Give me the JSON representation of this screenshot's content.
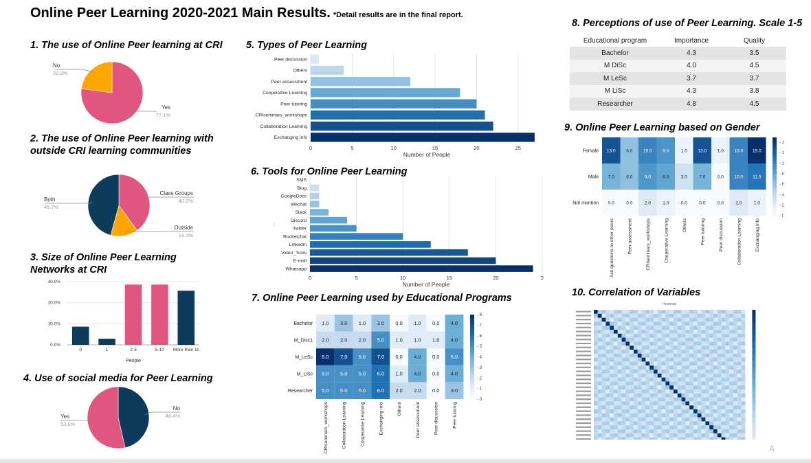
{
  "header": {
    "title": "Online Peer Learning 2020-2021 Main Results.",
    "note": "*Detail results are in the final report."
  },
  "corner_mark": "A",
  "chart_data": [
    {
      "id": "c1",
      "type": "pie",
      "title": "1. The use of Online Peer learning at CRI",
      "slices": [
        {
          "label": "Yes",
          "pct_label": "77.1%",
          "value": 77.1,
          "color": "#e0567f"
        },
        {
          "label": "No",
          "pct_label": "22.9%",
          "value": 22.9,
          "color": "#ffa500"
        }
      ]
    },
    {
      "id": "c2",
      "type": "pie",
      "title": "2.  The use of Online Peer learning with outside CRI learning communities",
      "title_lines": [
        "2.  The use of Online Peer learning with",
        "outside CRI learning communities"
      ],
      "slices": [
        {
          "label": "Class Groups",
          "pct_label": "40.0%",
          "value": 40.0,
          "color": "#e0567f"
        },
        {
          "label": "Outside",
          "pct_label": "14.3%",
          "value": 14.3,
          "color": "#ffa500"
        },
        {
          "label": "Both",
          "pct_label": "45.7%",
          "value": 45.7,
          "color": "#0d3b5c"
        }
      ]
    },
    {
      "id": "c3",
      "type": "bar",
      "title": "3.  Size of Online Peer Learning Networks at CRI",
      "title_lines": [
        "3.  Size of Online Peer Learning",
        "Networks at CRI"
      ],
      "categories": [
        "0",
        "1",
        "2-5",
        "5-10",
        "More than 11"
      ],
      "values": [
        8.6,
        2.9,
        28.6,
        28.6,
        25.7
      ],
      "colors": [
        "#0d3b5c",
        "#0d3b5c",
        "#e0567f",
        "#e0567f",
        "#0d3b5c"
      ],
      "xlabel": "People",
      "ylabel": "%",
      "ylim": [
        0,
        30
      ],
      "yticks": [
        "0.0%",
        "10.0%",
        "20.0%",
        "30.0%"
      ]
    },
    {
      "id": "c4",
      "type": "pie",
      "title": "4.  Use of social media for Peer Learning",
      "slices": [
        {
          "label": "No",
          "pct_label": "46.4%",
          "value": 46.4,
          "color": "#0d3b5c"
        },
        {
          "label": "Yes",
          "pct_label": "53.6%",
          "value": 53.6,
          "color": "#e0567f"
        }
      ]
    },
    {
      "id": "c5",
      "type": "bar",
      "orientation": "horizontal",
      "title": "5. Types of Peer Learning",
      "categories": [
        "Peer discussion",
        "Others",
        "Peer assessment",
        "Cooperative Learning",
        "Peer tutoring",
        "CRIseminars_workshops",
        "Collaboration Learning",
        "Exchanging info"
      ],
      "values": [
        1,
        4,
        12,
        18,
        20,
        21,
        22,
        27
      ],
      "xlabel": "Number of People",
      "xlim": [
        0,
        28
      ],
      "xticks": [
        "0",
        "5",
        "10",
        "15",
        "20",
        "25"
      ]
    },
    {
      "id": "c6",
      "type": "bar",
      "orientation": "horizontal",
      "title": "6. Tools for Online Peer Learning",
      "categories": [
        "SMS",
        "Blog",
        "GoogleDocs",
        "Wechat",
        "Slack",
        "Discord",
        "Twitter",
        "Rocketchat",
        "Linkedin",
        "Video_Tools",
        "E-mail",
        "Whatsapp"
      ],
      "values": [
        0,
        1,
        1,
        1,
        2,
        4,
        5,
        10,
        13,
        17,
        20,
        24
      ],
      "xlabel": "Number of People",
      "xlim": [
        0,
        25
      ],
      "xticks": [
        "0",
        "5",
        "10",
        "15",
        "20",
        "2"
      ],
      "stray_label": ":"
    },
    {
      "id": "c7",
      "type": "heatmap",
      "title": "7. Online Peer Learning used by Educational Programs",
      "rows": [
        "Bachelor",
        "M_Disc1",
        "M_LeSc",
        "M_LiSc",
        "Researcher"
      ],
      "columns": [
        "CRIseminars_workshops",
        "Collaboration Learning",
        "Cooperative Learning",
        "Exchanging info",
        "Others",
        "Peer assessment",
        "Peer discussion",
        "Peer tutoring"
      ],
      "values": [
        [
          1.0,
          3.0,
          1.0,
          3.0,
          0.0,
          1.0,
          0.0,
          4.0
        ],
        [
          2.0,
          2.0,
          2.0,
          5.0,
          1.0,
          1.0,
          1.0,
          4.0
        ],
        [
          8.0,
          7.0,
          5.0,
          7.0,
          0.0,
          4.0,
          0.0,
          5.0
        ],
        [
          5.0,
          5.0,
          5.0,
          6.0,
          1.0,
          4.0,
          0.0,
          4.0
        ],
        [
          5.0,
          5.0,
          5.0,
          6.0,
          2.0,
          2.0,
          0.0,
          3.0
        ]
      ],
      "cells_labeled": [
        [
          "1.0",
          "3.0",
          "1.0",
          "3.0",
          "0.0",
          "1.0",
          "0.0",
          "4.0"
        ],
        [
          "2.0",
          "2.0",
          "2.0",
          "5.0",
          "1.0",
          "1.0",
          "1.0",
          "4.0"
        ],
        [
          "8.0",
          "7.0",
          "5.0",
          "7.0",
          "0.0",
          "4.0",
          "0.0",
          "5.0"
        ],
        [
          "5.0",
          "5.0",
          "5.0",
          "6.0",
          "1.0",
          "4.0",
          "0.0",
          "4.0"
        ],
        [
          "5.0",
          "5.0",
          "5.0",
          "6.0",
          "2.0",
          "2.0",
          "0.0",
          "3.0"
        ]
      ],
      "colorbar_ticks": [
        "0",
        "1",
        "2",
        "3",
        "4",
        "5",
        "6",
        "7",
        "8"
      ],
      "vmax": 8
    },
    {
      "id": "c8",
      "type": "table",
      "title": "8. Perceptions of use of Peer Learning. Scale 1-5",
      "columns": [
        "Educational program",
        "Importance",
        "Quality"
      ],
      "rows": [
        [
          "Bachelor",
          "4.3",
          "3.5"
        ],
        [
          "M DiSc",
          "4.0",
          "4.5"
        ],
        [
          "M LeSc",
          "3.7",
          "3.7"
        ],
        [
          "M LiSc",
          "4.3",
          "3.8"
        ],
        [
          "Researcher",
          "4.8",
          "4.5"
        ]
      ]
    },
    {
      "id": "c9",
      "type": "heatmap",
      "title": "9. Online Peer Learning based on Gender",
      "rows": [
        "Female",
        "Male",
        "Not mention"
      ],
      "columns": [
        "Ask questions to other peers",
        "Peer assessment",
        "CRIseminars_workshops",
        "Cooperative Learning",
        "Others",
        "Peer tutoring",
        "Peer discussion",
        "Collaboration Learning",
        "Exchanging info"
      ],
      "values": [
        [
          13.0,
          6.0,
          10.0,
          9.0,
          1.0,
          13.0,
          1.0,
          10.0,
          15.0
        ],
        [
          7.0,
          6.0,
          9.0,
          8.0,
          3.0,
          7.0,
          0.0,
          10.0,
          11.0
        ],
        [
          0.0,
          0.0,
          2.0,
          1.0,
          0.0,
          0.0,
          0.0,
          2.0,
          1.0
        ]
      ],
      "cells_labeled": [
        [
          "13.0",
          "6.0",
          "10.0",
          "9.0",
          "1.0",
          "13.0",
          "1.0",
          "10.0",
          "15.0"
        ],
        [
          "7.0",
          "6.0",
          "9.0",
          "8.0",
          "3.0",
          "7.0",
          "0.0",
          "10.0",
          "11.0"
        ],
        [
          "0.0",
          "0.0",
          "2.0",
          "1.0",
          "0.0",
          "0.0",
          "0.0",
          "2.0",
          "1.0"
        ]
      ],
      "colorbar_ticks": [
        "0",
        "2",
        "4",
        "6",
        "8",
        "10",
        "12",
        "14"
      ],
      "vmax": 15
    },
    {
      "id": "c10",
      "type": "heatmap",
      "title": "10. Correlation of Variables",
      "subtitle": "Heatmap",
      "size": 38,
      "note": "labels and cell values illegible at source resolution"
    }
  ]
}
